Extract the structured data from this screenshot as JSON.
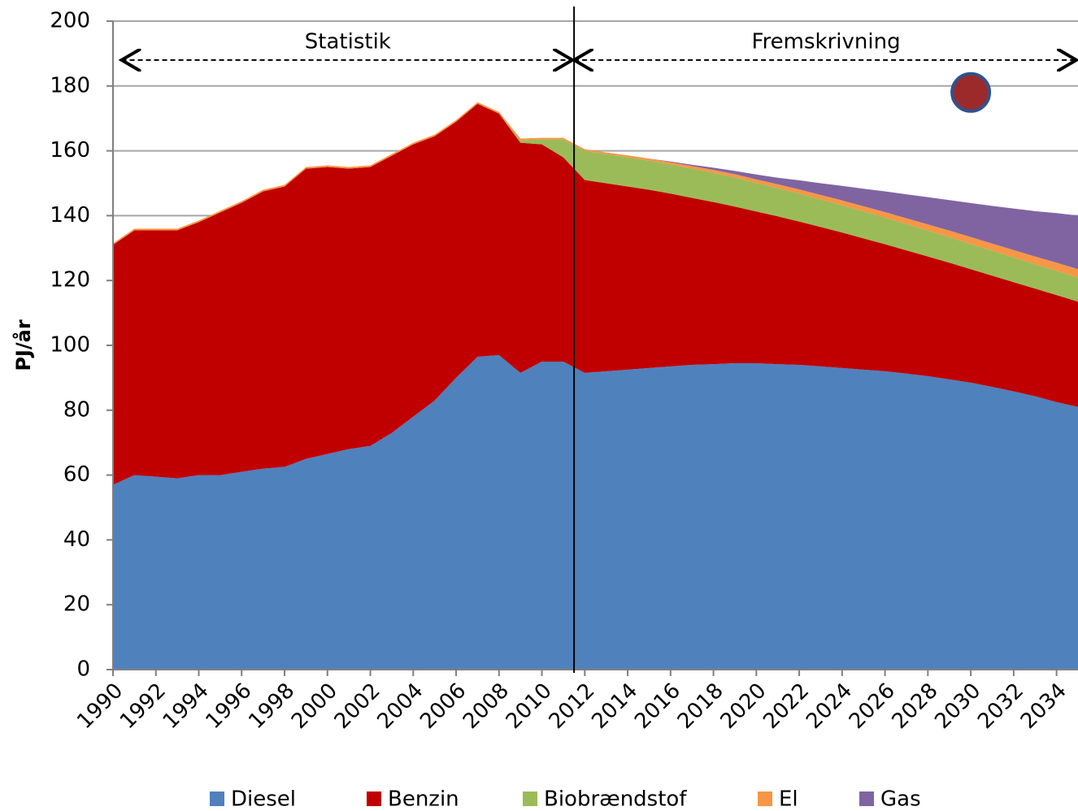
{
  "chart_data": {
    "type": "stacked-area",
    "y_label": "PJ/år",
    "x": [
      1990,
      1991,
      1992,
      1993,
      1994,
      1995,
      1996,
      1997,
      1998,
      1999,
      2000,
      2001,
      2002,
      2003,
      2004,
      2005,
      2006,
      2007,
      2008,
      2009,
      2010,
      2011,
      2012,
      2013,
      2014,
      2015,
      2016,
      2017,
      2018,
      2019,
      2020,
      2021,
      2022,
      2023,
      2024,
      2025,
      2026,
      2027,
      2028,
      2029,
      2030,
      2031,
      2032,
      2033,
      2034,
      2035
    ],
    "series": [
      {
        "name": "Diesel",
        "color": "#4f81bd",
        "values": [
          57,
          60,
          59.5,
          59,
          60,
          60,
          61,
          62,
          62.5,
          65,
          66.5,
          68,
          69,
          73,
          78,
          83,
          90,
          96.5,
          97,
          91.5,
          95,
          95,
          91.5,
          92,
          92.5,
          93,
          93.5,
          94,
          94.2,
          94.5,
          94.5,
          94.2,
          94,
          93.5,
          93,
          92.5,
          92,
          91.3,
          90.5,
          89.5,
          88.5,
          87.2,
          85.8,
          84.3,
          82.5,
          81
        ]
      },
      {
        "name": "Benzin",
        "color": "#c00000",
        "values": [
          74,
          75.5,
          76,
          76.5,
          78,
          81,
          83,
          85.5,
          86.5,
          89.5,
          88.5,
          86.5,
          86,
          85.5,
          84,
          81.5,
          79,
          78,
          74.5,
          71,
          67,
          63,
          59.5,
          58,
          56.5,
          55,
          53.3,
          51.5,
          50,
          48.3,
          46.8,
          45.6,
          44.2,
          43,
          41.8,
          40.5,
          39.2,
          38,
          36.9,
          36,
          35,
          34.3,
          33.7,
          33.2,
          33,
          32.5
        ]
      },
      {
        "name": "Biobrændstof",
        "color": "#9bbb59",
        "values": [
          0,
          0,
          0,
          0,
          0,
          0,
          0,
          0,
          0,
          0,
          0,
          0,
          0,
          0,
          0,
          0,
          0,
          0,
          0,
          0.8,
          1.5,
          5.5,
          9,
          9,
          9,
          9,
          9,
          9,
          9,
          9,
          8.8,
          8.7,
          8.6,
          8.5,
          8.4,
          8.3,
          8.2,
          8.1,
          8,
          7.9,
          7.8,
          7.7,
          7.6,
          7.5,
          7.5,
          7.4
        ]
      },
      {
        "name": "El",
        "color": "#f79646",
        "values": [
          0.5,
          0.5,
          0.5,
          0.5,
          0.5,
          0.5,
          0.5,
          0.5,
          0.5,
          0.5,
          0.5,
          0.5,
          0.5,
          0.5,
          0.5,
          0.5,
          0.5,
          0.5,
          0.5,
          0.5,
          0.5,
          0.5,
          0.5,
          0.5,
          0.6,
          0.6,
          0.7,
          0.8,
          0.9,
          1,
          1.1,
          1.2,
          1.3,
          1.4,
          1.5,
          1.6,
          1.7,
          1.8,
          1.9,
          2,
          2.1,
          2.2,
          2.3,
          2.4,
          2.5,
          2.6
        ]
      },
      {
        "name": "Gas",
        "color": "#8064a2",
        "values": [
          0,
          0,
          0,
          0,
          0,
          0,
          0,
          0,
          0,
          0,
          0,
          0,
          0,
          0,
          0,
          0,
          0,
          0,
          0,
          0,
          0,
          0,
          0,
          0,
          0,
          0,
          0.2,
          0.4,
          0.7,
          1,
          1.5,
          2,
          2.8,
          3.6,
          4.5,
          5.4,
          6.4,
          7.4,
          8.4,
          9.4,
          10.5,
          11.6,
          12.8,
          14,
          15.3,
          16.5
        ]
      }
    ],
    "xlim": [
      1990,
      2035
    ],
    "xticks": [
      1990,
      1992,
      1994,
      1996,
      1998,
      2000,
      2002,
      2004,
      2006,
      2008,
      2010,
      2012,
      2014,
      2016,
      2018,
      2020,
      2022,
      2024,
      2026,
      2028,
      2030,
      2032,
      2034
    ],
    "ylim": [
      0,
      200
    ],
    "yticks": [
      0,
      20,
      40,
      60,
      80,
      100,
      120,
      140,
      160,
      180,
      200
    ],
    "grid": true,
    "legend": "bottom",
    "annotations": [
      {
        "text": "Statistik",
        "from": 1990.4,
        "to": 2011.5,
        "y": 188
      },
      {
        "text": "Fremskrivning",
        "from": 2011.5,
        "to": 2035,
        "y": 188
      }
    ],
    "divider": 2011.5,
    "marker": {
      "x": 2030,
      "y": 178,
      "color": "#9c2a2a"
    }
  }
}
